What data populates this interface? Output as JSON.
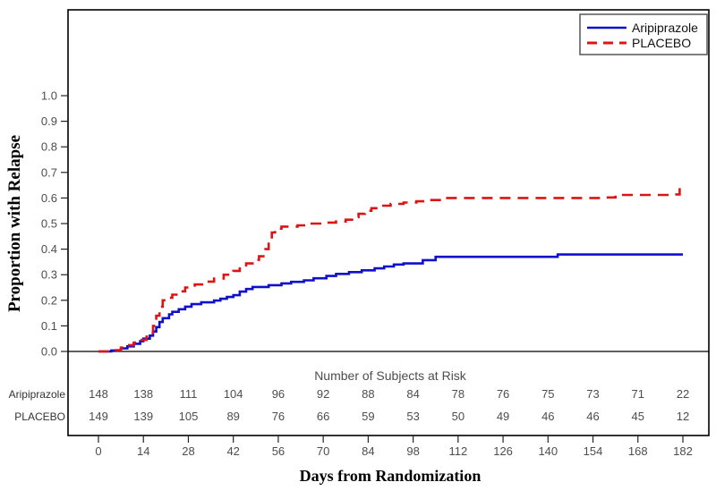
{
  "chart_data": {
    "type": "line",
    "subtype": "kaplan-meier-step",
    "title": "",
    "xlabel": "Days from Randomization",
    "ylabel": "Proportion with Relapse",
    "xlim": [
      0,
      182
    ],
    "ylim": [
      0,
      1.0
    ],
    "x_ticks": [
      0,
      14,
      28,
      42,
      56,
      70,
      84,
      98,
      112,
      126,
      140,
      154,
      168,
      182
    ],
    "y_ticks": [
      0.0,
      0.1,
      0.2,
      0.3,
      0.4,
      0.5,
      0.6,
      0.7,
      0.8,
      0.9,
      1.0
    ],
    "grid": false,
    "legend_position": "top-right",
    "colors": {
      "aripiprazole": "#1010cb",
      "placebo": "#dc1414",
      "axis_text": "#4d4d4d",
      "frame": "#000000"
    },
    "series": [
      {
        "name": "Aripiprazole",
        "color": "#1010cb",
        "style": "solid",
        "points": [
          [
            0,
            0
          ],
          [
            4,
            0.004
          ],
          [
            7,
            0.012
          ],
          [
            9,
            0.02
          ],
          [
            11,
            0.03
          ],
          [
            13,
            0.04
          ],
          [
            14,
            0.05
          ],
          [
            16,
            0.062
          ],
          [
            17,
            0.078
          ],
          [
            18,
            0.095
          ],
          [
            19,
            0.115
          ],
          [
            20,
            0.13
          ],
          [
            22,
            0.145
          ],
          [
            23,
            0.155
          ],
          [
            25,
            0.165
          ],
          [
            27,
            0.175
          ],
          [
            29,
            0.185
          ],
          [
            32,
            0.192
          ],
          [
            36,
            0.199
          ],
          [
            38,
            0.206
          ],
          [
            40,
            0.213
          ],
          [
            42,
            0.22
          ],
          [
            44,
            0.234
          ],
          [
            46,
            0.244
          ],
          [
            48,
            0.252
          ],
          [
            53,
            0.259
          ],
          [
            57,
            0.266
          ],
          [
            60,
            0.272
          ],
          [
            64,
            0.278
          ],
          [
            67,
            0.286
          ],
          [
            71,
            0.295
          ],
          [
            74,
            0.303
          ],
          [
            78,
            0.31
          ],
          [
            82,
            0.317
          ],
          [
            86,
            0.325
          ],
          [
            89,
            0.332
          ],
          [
            92,
            0.34
          ],
          [
            95,
            0.344
          ],
          [
            101,
            0.357
          ],
          [
            105,
            0.37
          ],
          [
            143,
            0.379
          ],
          [
            182,
            0.379
          ]
        ]
      },
      {
        "name": "PLACEBO",
        "color": "#dc1414",
        "style": "dashed",
        "points": [
          [
            0,
            0
          ],
          [
            4,
            0.005
          ],
          [
            7,
            0.015
          ],
          [
            9,
            0.025
          ],
          [
            11,
            0.035
          ],
          [
            13,
            0.045
          ],
          [
            15,
            0.058
          ],
          [
            16,
            0.072
          ],
          [
            17,
            0.1
          ],
          [
            18,
            0.14
          ],
          [
            19,
            0.175
          ],
          [
            20,
            0.2
          ],
          [
            21,
            0.21
          ],
          [
            23,
            0.222
          ],
          [
            25,
            0.235
          ],
          [
            27,
            0.25
          ],
          [
            30,
            0.262
          ],
          [
            33,
            0.273
          ],
          [
            36,
            0.285
          ],
          [
            39,
            0.3
          ],
          [
            42,
            0.315
          ],
          [
            44,
            0.33
          ],
          [
            46,
            0.344
          ],
          [
            48,
            0.358
          ],
          [
            50,
            0.372
          ],
          [
            52,
            0.4
          ],
          [
            53,
            0.43
          ],
          [
            54,
            0.465
          ],
          [
            55,
            0.48
          ],
          [
            57,
            0.488
          ],
          [
            62,
            0.493
          ],
          [
            66,
            0.5
          ],
          [
            70,
            0.504
          ],
          [
            74,
            0.508
          ],
          [
            77,
            0.515
          ],
          [
            79,
            0.525
          ],
          [
            81,
            0.538
          ],
          [
            83,
            0.55
          ],
          [
            85,
            0.56
          ],
          [
            88,
            0.57
          ],
          [
            91,
            0.577
          ],
          [
            95,
            0.582
          ],
          [
            99,
            0.587
          ],
          [
            103,
            0.592
          ],
          [
            107,
            0.6
          ],
          [
            158,
            0.602
          ],
          [
            161,
            0.612
          ],
          [
            178,
            0.614
          ],
          [
            181,
            0.64
          ],
          [
            182,
            0.648
          ]
        ]
      }
    ],
    "at_risk": {
      "title": "Number of Subjects at Risk",
      "days": [
        0,
        14,
        28,
        42,
        56,
        70,
        84,
        98,
        112,
        126,
        140,
        154,
        168,
        182
      ],
      "rows": [
        {
          "label": "Aripiprazole",
          "values": [
            148,
            138,
            111,
            104,
            96,
            92,
            88,
            84,
            78,
            76,
            75,
            73,
            71,
            22
          ]
        },
        {
          "label": "PLACEBO",
          "values": [
            149,
            139,
            105,
            89,
            76,
            66,
            59,
            53,
            50,
            49,
            46,
            46,
            45,
            12
          ]
        }
      ]
    }
  }
}
